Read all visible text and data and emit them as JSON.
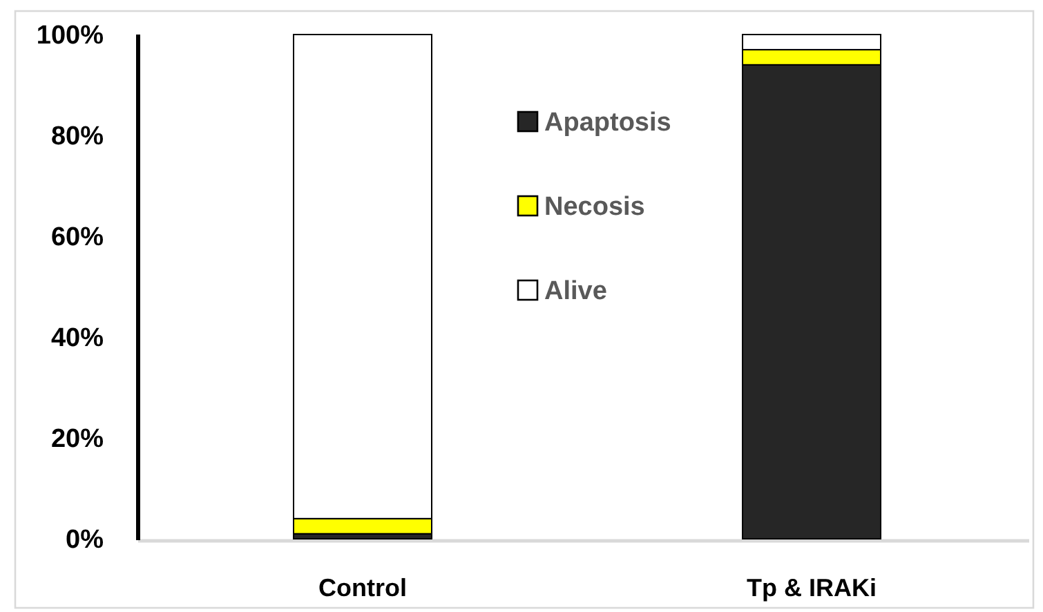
{
  "chart_data": {
    "type": "bar",
    "stacked": true,
    "categories": [
      "Control",
      "Tp & IRAKi"
    ],
    "series": [
      {
        "name": "Apaptosis",
        "color": "#262626",
        "values": [
          1,
          94
        ]
      },
      {
        "name": "Necosis",
        "color": "#ffff00",
        "values": [
          3,
          3
        ]
      },
      {
        "name": "Alive",
        "color": "#ffffff",
        "values": [
          96,
          3
        ]
      }
    ],
    "ylim": [
      0,
      100
    ],
    "yticks": [
      {
        "value": 0,
        "label": "0%"
      },
      {
        "value": 20,
        "label": "20%"
      },
      {
        "value": 40,
        "label": "40%"
      },
      {
        "value": 60,
        "label": "60%"
      },
      {
        "value": 80,
        "label": "80%"
      },
      {
        "value": 100,
        "label": "100%"
      }
    ],
    "legend": "top"
  }
}
